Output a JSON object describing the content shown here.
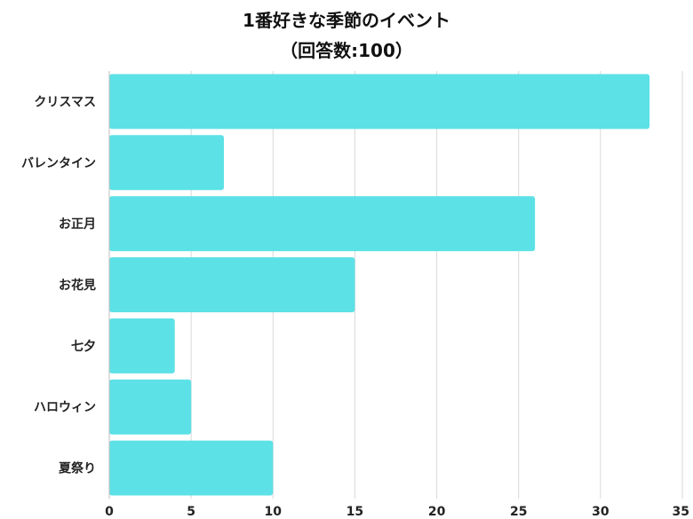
{
  "chart_data": {
    "type": "bar",
    "orientation": "horizontal",
    "title": "1番好きな季節のイベント",
    "subtitle": "（回答数:100）",
    "categories": [
      "クリスマス",
      "バレンタイン",
      "お正月",
      "お花見",
      "七夕",
      "ハロウィン",
      "夏祭り"
    ],
    "values": [
      33,
      7,
      26,
      15,
      4,
      5,
      10
    ],
    "xlim": [
      0,
      35
    ],
    "xticks": [
      0,
      5,
      10,
      15,
      20,
      25,
      30,
      35
    ],
    "grid": true,
    "legend": "none",
    "bar_color": "#5ce1e6"
  }
}
